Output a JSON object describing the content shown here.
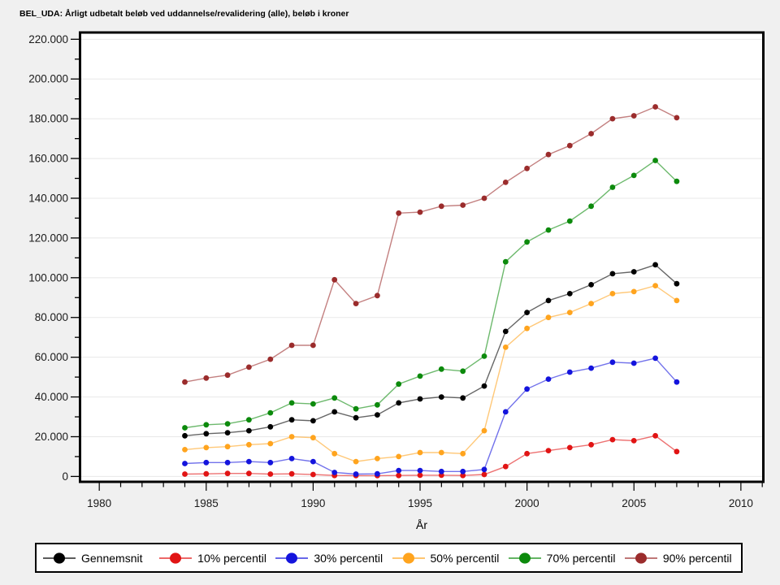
{
  "header": {
    "title": "BEL_UDA: Årligt udbetalt beløb ved uddannelse/revalidering (alle), beløb i kroner"
  },
  "chart_data": {
    "type": "line",
    "title": "BEL_UDA: Årligt udbetalt beløb ved uddannelse/revalidering (alle), beløb i kroner",
    "xlabel": "År",
    "ylabel": "",
    "grid": "horizontal",
    "legend_position": "bottom",
    "background": "#f0f0f0",
    "plot_background": "#ffffff",
    "gridline_color": "#e8e8e8",
    "x_range": [
      1979.1,
      2011.05
    ],
    "y_range": [
      -2700,
      223400
    ],
    "x_ticks_major": [
      1980,
      1985,
      1990,
      1995,
      2000,
      2005,
      2010
    ],
    "x_ticks_minor_step": 1,
    "y_ticks_major": [
      0,
      20000,
      40000,
      60000,
      80000,
      100000,
      120000,
      140000,
      160000,
      180000,
      200000,
      220000
    ],
    "y_ticks_minor_step": 10000,
    "x": [
      1984,
      1985,
      1986,
      1987,
      1988,
      1989,
      1990,
      1991,
      1992,
      1993,
      1994,
      1995,
      1996,
      1997,
      1998,
      1999,
      2000,
      2001,
      2002,
      2003,
      2004,
      2005,
      2006,
      2007
    ],
    "series": [
      {
        "name": "Gennemsnit",
        "color": "#000000",
        "values": [
          20500,
          21500,
          22000,
          23000,
          25000,
          28500,
          28000,
          32500,
          29500,
          31000,
          37000,
          39000,
          40000,
          39500,
          45500,
          73000,
          82500,
          88500,
          92000,
          96500,
          102000,
          103000,
          106500,
          97000
        ]
      },
      {
        "name": "10% percentil",
        "color": "#e11414",
        "values": [
          1200,
          1300,
          1500,
          1500,
          1200,
          1300,
          1000,
          500,
          400,
          400,
          500,
          600,
          600,
          500,
          1000,
          5000,
          11500,
          13000,
          14500,
          16000,
          18500,
          18000,
          20500,
          12500
        ]
      },
      {
        "name": "30% percentil",
        "color": "#1414dd",
        "values": [
          6500,
          7000,
          7000,
          7500,
          7000,
          9000,
          7500,
          2000,
          1200,
          1300,
          3000,
          3000,
          2500,
          2500,
          3500,
          32500,
          44000,
          49000,
          52500,
          54500,
          57500,
          57000,
          59500,
          47500
        ]
      },
      {
        "name": "50% percentil",
        "color": "#ffa41e",
        "values": [
          13500,
          14500,
          15000,
          16000,
          16500,
          20000,
          19500,
          11500,
          7500,
          9000,
          10000,
          12000,
          12000,
          11500,
          23000,
          65000,
          74500,
          80000,
          82500,
          87000,
          92000,
          93000,
          96000,
          88500
        ]
      },
      {
        "name": "70% percentil",
        "color": "#0c8a0c",
        "values": [
          24500,
          26000,
          26500,
          28500,
          32000,
          37000,
          36500,
          39500,
          34000,
          36000,
          46500,
          50500,
          54000,
          53000,
          60500,
          108000,
          118000,
          124000,
          128500,
          136000,
          145500,
          151500,
          159000,
          148500
        ]
      },
      {
        "name": "90% percentil",
        "color": "#9b2c2c",
        "values": [
          47500,
          49500,
          51000,
          55000,
          59000,
          66000,
          66000,
          99000,
          87000,
          91000,
          132500,
          133000,
          136000,
          136500,
          140000,
          148000,
          155000,
          162000,
          166500,
          172500,
          180000,
          181500,
          186000,
          180500
        ]
      }
    ]
  }
}
